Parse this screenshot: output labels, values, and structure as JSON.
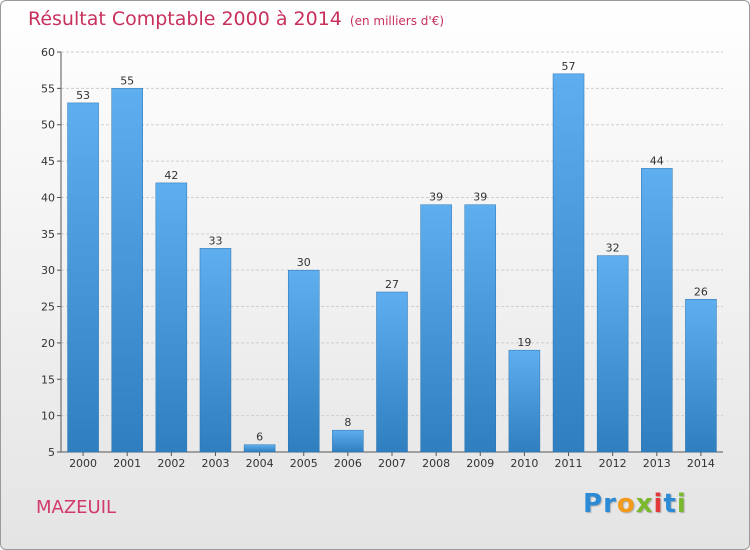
{
  "header": {
    "title": "Résultat Comptable 2000 à 2014",
    "subtitle": "(en milliers d'€)"
  },
  "footer": {
    "commune": "MAZEUIL",
    "logo_text": "Proxiti"
  },
  "colors": {
    "title": "#c8305c",
    "bar_top": "#5eaef0",
    "bar_bottom": "#2f7fc0",
    "logo_letters": [
      "#2d8bd6",
      "#2d8bd6",
      "#f39a1b",
      "#7ab82e",
      "#e23a3a",
      "#2d8bd6",
      "#7ab82e"
    ]
  },
  "chart_data": {
    "type": "bar",
    "categories": [
      "2000",
      "2001",
      "2002",
      "2003",
      "2004",
      "2005",
      "2006",
      "2007",
      "2008",
      "2009",
      "2010",
      "2011",
      "2012",
      "2013",
      "2014"
    ],
    "values": [
      53,
      55,
      42,
      33,
      6,
      30,
      8,
      27,
      39,
      39,
      19,
      57,
      32,
      44,
      26
    ],
    "ylim": [
      5,
      60
    ],
    "yticks": [
      5,
      10,
      15,
      20,
      25,
      30,
      35,
      40,
      45,
      50,
      55,
      60
    ],
    "grid": true,
    "data_labels": true
  }
}
